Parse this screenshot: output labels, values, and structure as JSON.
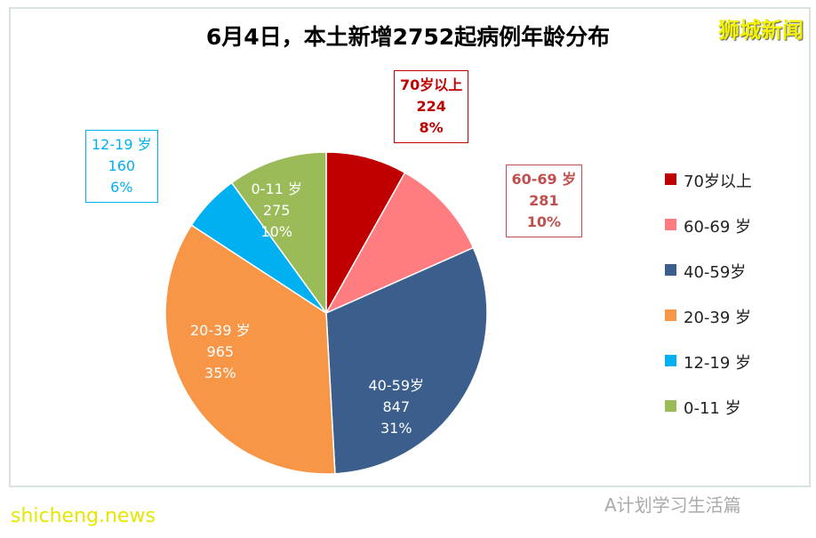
{
  "chart_data": {
    "type": "pie",
    "title": "6月4日，本土新增2752起病例年龄分布",
    "slices": [
      {
        "label": "70岁以上",
        "value": 224,
        "percent": "8%",
        "color": "#C00000"
      },
      {
        "label": "60-69 岁",
        "value": 281,
        "percent": "10%",
        "color": "#FF7C80"
      },
      {
        "label": "40-59岁",
        "value": 847,
        "percent": "31%",
        "color": "#3B5E8C"
      },
      {
        "label": "20-39 岁",
        "value": 965,
        "percent": "35%",
        "color": "#F79646"
      },
      {
        "label": "12-19 岁",
        "value": 160,
        "percent": "6%",
        "color": "#00B0F0"
      },
      {
        "label": "0-11 岁",
        "value": 275,
        "percent": "10%",
        "color": "#9BBB59"
      }
    ],
    "legend_position": "right"
  },
  "brand": "狮城新闻",
  "watermark": "shicheng.news",
  "wechat": "A计划学习生活篇"
}
